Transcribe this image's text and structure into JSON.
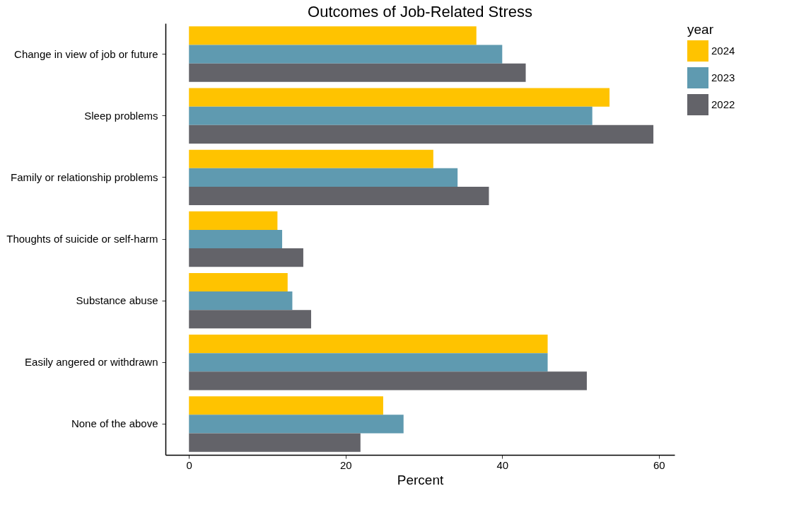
{
  "chart_data": {
    "type": "bar",
    "orientation": "horizontal",
    "title": "Outcomes of Job-Related Stress",
    "xlabel": "Percent",
    "legend_title": "year",
    "legend": "right",
    "grid": false,
    "categories": [
      "Change in view of job or future",
      "Sleep problems",
      "Family or relationship problems",
      "Thoughts of suicide or self-harm",
      "Substance abuse",
      "Easily angered or withdrawn",
      "None of the above"
    ],
    "series": [
      {
        "name": "2024",
        "color": "#ffc300",
        "values": [
          36.7,
          53.7,
          31.2,
          11.3,
          12.6,
          45.8,
          24.8
        ]
      },
      {
        "name": "2023",
        "color": "#5f9ab0",
        "values": [
          40.0,
          51.5,
          34.3,
          11.9,
          13.2,
          45.8,
          27.4
        ]
      },
      {
        "name": "2022",
        "color": "#636369",
        "values": [
          43.0,
          59.3,
          38.3,
          14.6,
          15.6,
          50.8,
          21.9
        ]
      }
    ],
    "xlim": [
      -3,
      62
    ],
    "xticks": [
      0,
      20,
      40,
      60
    ]
  }
}
